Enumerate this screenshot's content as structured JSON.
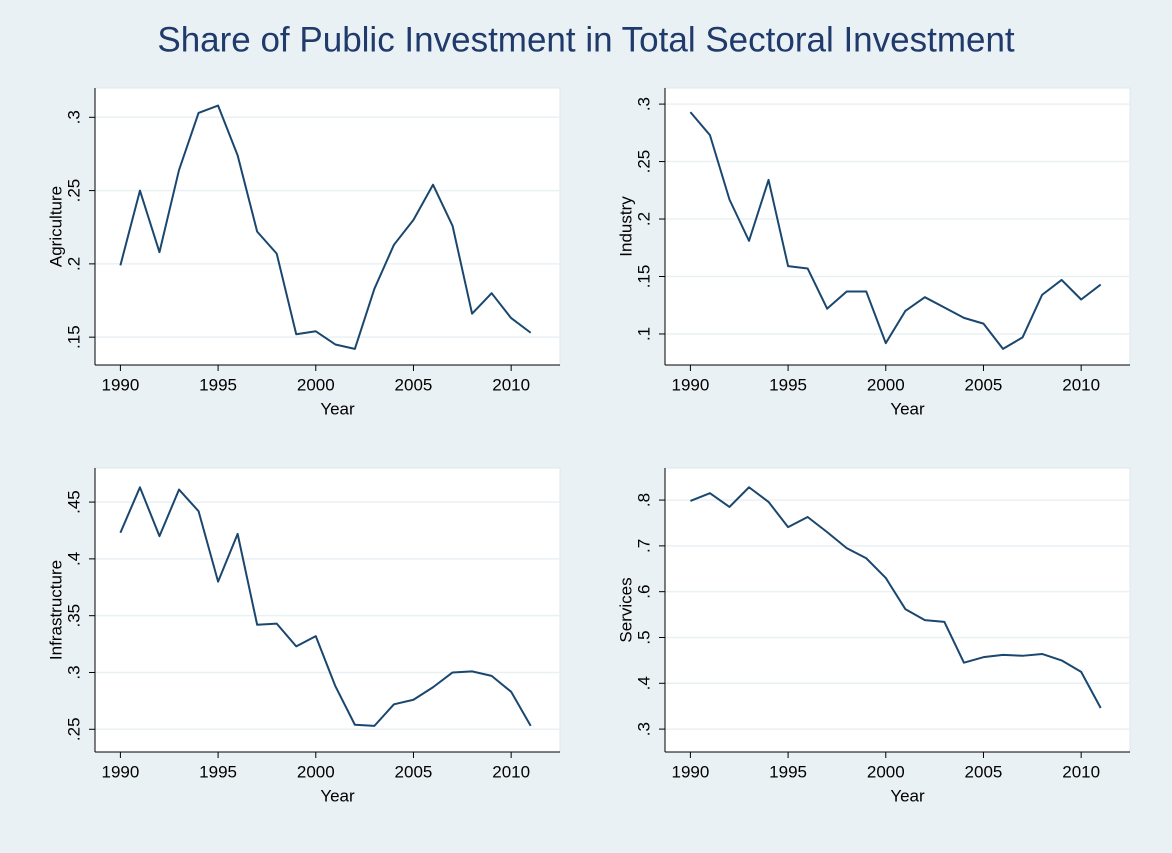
{
  "title": "Share of Public Investment in Total Sectoral Investment",
  "chart_data": [
    {
      "type": "line",
      "ylabel": "Agriculture",
      "xlabel": "Year",
      "color": "#1a476f",
      "grid": true,
      "x": [
        1990,
        1991,
        1992,
        1993,
        1994,
        1995,
        1996,
        1997,
        1998,
        1999,
        2000,
        2001,
        2002,
        2003,
        2004,
        2005,
        2006,
        2007,
        2008,
        2009,
        2010,
        2011
      ],
      "values": [
        0.199,
        0.25,
        0.208,
        0.264,
        0.303,
        0.308,
        0.274,
        0.222,
        0.207,
        0.152,
        0.154,
        0.145,
        0.142,
        0.183,
        0.213,
        0.23,
        0.254,
        0.226,
        0.166,
        0.18,
        0.163,
        0.153
      ],
      "xlim": [
        1988.7,
        2012.5
      ],
      "xticks": [
        1990,
        1995,
        2000,
        2005,
        2010
      ],
      "ylim": [
        0.131,
        0.32
      ],
      "yticks": [
        {
          "value": 0.15,
          "label": ".15"
        },
        {
          "value": 0.2,
          "label": ".2"
        },
        {
          "value": 0.25,
          "label": ".25"
        },
        {
          "value": 0.3,
          "label": ".3"
        }
      ]
    },
    {
      "type": "line",
      "ylabel": "Industry",
      "xlabel": "Year",
      "color": "#1a476f",
      "grid": true,
      "x": [
        1990,
        1991,
        1992,
        1993,
        1994,
        1995,
        1996,
        1997,
        1998,
        1999,
        2000,
        2001,
        2002,
        2003,
        2004,
        2005,
        2006,
        2007,
        2008,
        2009,
        2010,
        2011
      ],
      "values": [
        0.293,
        0.273,
        0.217,
        0.181,
        0.234,
        0.159,
        0.157,
        0.122,
        0.137,
        0.137,
        0.092,
        0.12,
        0.132,
        0.123,
        0.114,
        0.109,
        0.087,
        0.097,
        0.134,
        0.147,
        0.13,
        0.143
      ],
      "xlim": [
        1988.7,
        2012.5
      ],
      "xticks": [
        1990,
        1995,
        2000,
        2005,
        2010
      ],
      "ylim": [
        0.073,
        0.314
      ],
      "yticks": [
        {
          "value": 0.1,
          "label": ".1"
        },
        {
          "value": 0.15,
          "label": ".15"
        },
        {
          "value": 0.2,
          "label": ".2"
        },
        {
          "value": 0.25,
          "label": ".25"
        },
        {
          "value": 0.3,
          "label": ".3"
        }
      ]
    },
    {
      "type": "line",
      "ylabel": "Infrastructure",
      "xlabel": "Year",
      "color": "#1a476f",
      "grid": true,
      "x": [
        1990,
        1991,
        1992,
        1993,
        1994,
        1995,
        1996,
        1997,
        1998,
        1999,
        2000,
        2001,
        2002,
        2003,
        2004,
        2005,
        2006,
        2007,
        2008,
        2009,
        2010,
        2011
      ],
      "values": [
        0.423,
        0.463,
        0.42,
        0.461,
        0.442,
        0.38,
        0.422,
        0.342,
        0.343,
        0.323,
        0.332,
        0.288,
        0.254,
        0.253,
        0.272,
        0.276,
        0.287,
        0.3,
        0.301,
        0.297,
        0.283,
        0.253
      ],
      "xlim": [
        1988.7,
        2012.5
      ],
      "xticks": [
        1990,
        1995,
        2000,
        2005,
        2010
      ],
      "ylim": [
        0.23,
        0.48
      ],
      "yticks": [
        {
          "value": 0.25,
          "label": ".25"
        },
        {
          "value": 0.3,
          "label": ".3"
        },
        {
          "value": 0.35,
          "label": ".35"
        },
        {
          "value": 0.4,
          "label": ".4"
        },
        {
          "value": 0.45,
          "label": ".45"
        }
      ]
    },
    {
      "type": "line",
      "ylabel": "Services",
      "xlabel": "Year",
      "color": "#1a476f",
      "grid": true,
      "x": [
        1990,
        1991,
        1992,
        1993,
        1994,
        1995,
        1996,
        1997,
        1998,
        1999,
        2000,
        2001,
        2002,
        2003,
        2004,
        2005,
        2006,
        2007,
        2008,
        2009,
        2010,
        2011
      ],
      "values": [
        0.798,
        0.815,
        0.785,
        0.828,
        0.796,
        0.741,
        0.763,
        0.73,
        0.695,
        0.673,
        0.63,
        0.562,
        0.538,
        0.534,
        0.445,
        0.457,
        0.462,
        0.46,
        0.464,
        0.45,
        0.425,
        0.346
      ],
      "xlim": [
        1988.7,
        2012.5
      ],
      "xticks": [
        1990,
        1995,
        2000,
        2005,
        2010
      ],
      "ylim": [
        0.25,
        0.87
      ],
      "yticks": [
        {
          "value": 0.3,
          "label": ".3"
        },
        {
          "value": 0.4,
          "label": ".4"
        },
        {
          "value": 0.5,
          "label": ".5"
        },
        {
          "value": 0.6,
          "label": ".6"
        },
        {
          "value": 0.7,
          "label": ".7"
        },
        {
          "value": 0.8,
          "label": ".8"
        }
      ]
    }
  ]
}
